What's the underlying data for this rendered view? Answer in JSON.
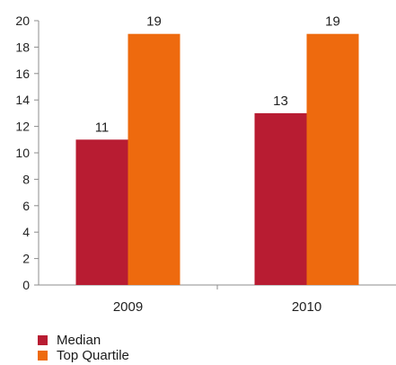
{
  "chart_data": {
    "type": "bar",
    "categories": [
      "2009",
      "2010"
    ],
    "series": [
      {
        "name": "Median",
        "values": [
          11,
          13
        ],
        "color": "#b81c32"
      },
      {
        "name": "Top Quartile",
        "values": [
          19,
          19
        ],
        "color": "#ee6a0e"
      }
    ],
    "ylim": [
      0,
      20
    ],
    "yticks": [
      0,
      2,
      4,
      6,
      8,
      10,
      12,
      14,
      16,
      18,
      20
    ],
    "title": "",
    "xlabel": "",
    "ylabel": "",
    "grid": false,
    "legend_position": "bottom-left"
  }
}
